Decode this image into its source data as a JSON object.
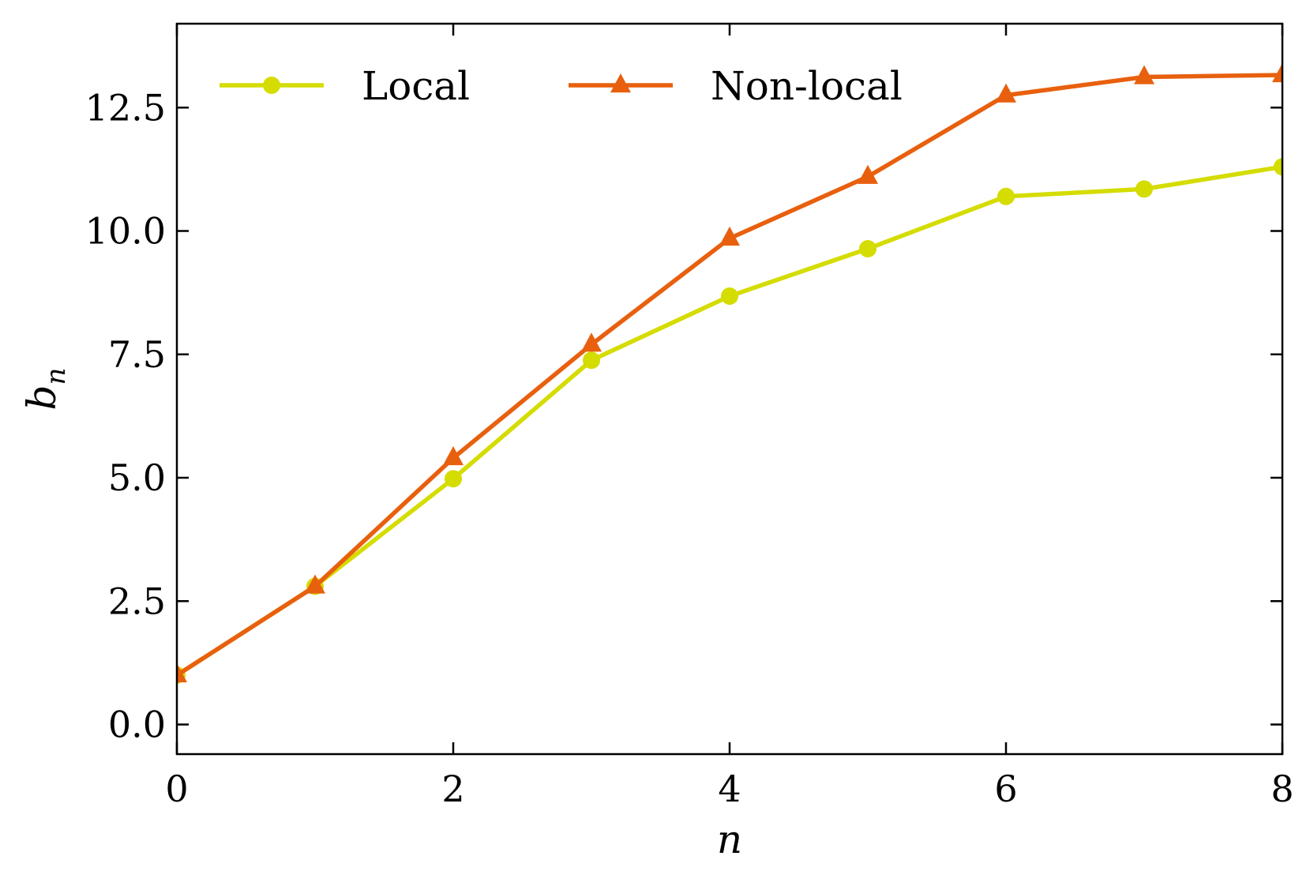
{
  "chart_data": {
    "type": "line",
    "title": "",
    "xlabel": "n",
    "ylabel_main": "b",
    "ylabel_sub": "n",
    "xlim": [
      0,
      8
    ],
    "ylim": [
      -0.6,
      14.2
    ],
    "xticks": [
      0,
      2,
      4,
      6,
      8
    ],
    "xtick_labels": [
      "0",
      "2",
      "4",
      "6",
      "8"
    ],
    "yticks": [
      0.0,
      2.5,
      5.0,
      7.5,
      10.0,
      12.5
    ],
    "ytick_labels": [
      "0.0",
      "2.5",
      "5.0",
      "7.5",
      "10.0",
      "12.5"
    ],
    "grid": false,
    "legend_position": "top",
    "x": [
      0,
      1,
      2,
      3,
      4,
      5,
      6,
      7,
      8
    ],
    "series": [
      {
        "name": "Local",
        "marker": "circle",
        "color": "#d4dc00",
        "values": [
          1.0,
          2.8,
          4.98,
          7.38,
          8.68,
          9.64,
          10.7,
          10.85,
          11.3
        ]
      },
      {
        "name": "Non-local",
        "marker": "triangle",
        "color": "#e8600e",
        "values": [
          1.0,
          2.8,
          5.4,
          7.7,
          9.85,
          11.1,
          12.75,
          13.12,
          13.16
        ]
      }
    ]
  }
}
